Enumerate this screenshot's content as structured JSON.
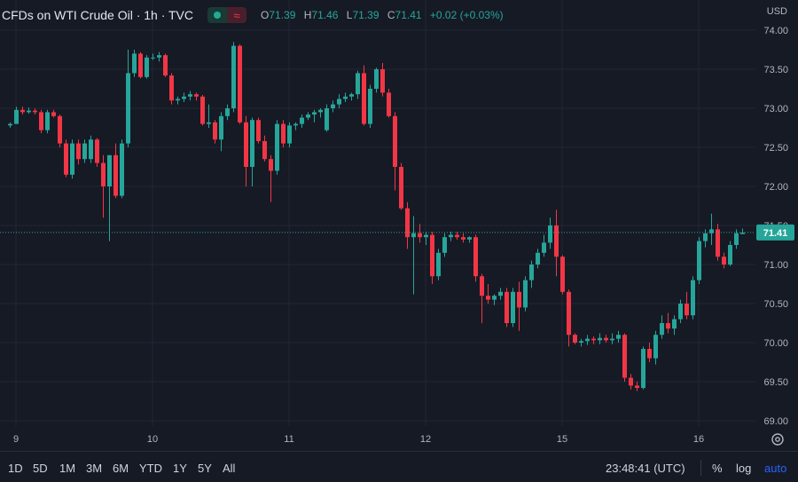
{
  "header": {
    "title": "CFDs on WTI Crude Oil · 1h · TVC",
    "ohlc": {
      "o_label": "O",
      "o_value": "71.39",
      "h_label": "H",
      "h_value": "71.46",
      "l_label": "L",
      "l_value": "71.39",
      "c_label": "C",
      "c_value": "71.41",
      "change": "+0.02 (+0.03%)"
    },
    "currency": "USD"
  },
  "price_tag": "71.41",
  "colors": {
    "up": "#26a69a",
    "down": "#f23645",
    "background": "#161a25",
    "grid": "#232734",
    "price_line": "#26a69a"
  },
  "chart_data": {
    "type": "candlestick",
    "title": "CFDs on WTI Crude Oil · 1h · TVC",
    "y_ticks": [
      "74.00",
      "73.50",
      "73.00",
      "72.50",
      "72.00",
      "71.50",
      "71.00",
      "70.50",
      "70.00",
      "69.50",
      "69.00"
    ],
    "ylim": [
      68.94,
      74.12
    ],
    "x_ticks": [
      {
        "label": "9",
        "index": 1
      },
      {
        "label": "10",
        "index": 23
      },
      {
        "label": "11",
        "index": 45
      },
      {
        "label": "12",
        "index": 67
      },
      {
        "label": "15",
        "index": 89
      },
      {
        "label": "16",
        "index": 111
      }
    ],
    "last_price": 71.41,
    "grid": true,
    "candles": [
      [
        72.78,
        72.82,
        72.75,
        72.8
      ],
      [
        72.8,
        73.02,
        72.8,
        72.98
      ],
      [
        72.98,
        73.02,
        72.92,
        72.95
      ],
      [
        72.95,
        73.01,
        72.93,
        72.97
      ],
      [
        72.97,
        73.0,
        72.92,
        72.95
      ],
      [
        72.95,
        72.98,
        72.68,
        72.72
      ],
      [
        72.72,
        72.98,
        72.68,
        72.95
      ],
      [
        72.95,
        72.98,
        72.88,
        72.9
      ],
      [
        72.9,
        72.92,
        72.5,
        72.55
      ],
      [
        72.55,
        72.6,
        72.12,
        72.15
      ],
      [
        72.15,
        72.6,
        72.1,
        72.55
      ],
      [
        72.55,
        72.6,
        72.28,
        72.35
      ],
      [
        72.35,
        72.6,
        72.3,
        72.55
      ],
      [
        72.35,
        72.65,
        72.3,
        72.6
      ],
      [
        72.6,
        72.62,
        72.25,
        72.3
      ],
      [
        72.3,
        72.4,
        71.6,
        72.0
      ],
      [
        72.0,
        72.4,
        71.3,
        72.4
      ],
      [
        72.4,
        72.55,
        71.85,
        71.88
      ],
      [
        71.88,
        72.6,
        71.85,
        72.55
      ],
      [
        72.55,
        73.75,
        72.5,
        73.45
      ],
      [
        73.45,
        73.75,
        73.4,
        73.7
      ],
      [
        73.7,
        73.72,
        73.38,
        73.4
      ],
      [
        73.4,
        73.68,
        73.38,
        73.65
      ],
      [
        73.65,
        73.7,
        73.62,
        73.65
      ],
      [
        73.65,
        73.72,
        73.6,
        73.68
      ],
      [
        73.68,
        73.7,
        73.4,
        73.42
      ],
      [
        73.42,
        73.45,
        73.05,
        73.1
      ],
      [
        73.1,
        73.15,
        73.05,
        73.12
      ],
      [
        73.12,
        73.2,
        73.08,
        73.15
      ],
      [
        73.15,
        73.22,
        73.1,
        73.18
      ],
      [
        73.18,
        73.2,
        73.1,
        73.15
      ],
      [
        73.15,
        73.17,
        72.78,
        72.8
      ],
      [
        72.8,
        73.05,
        72.75,
        72.82
      ],
      [
        72.82,
        72.85,
        72.55,
        72.6
      ],
      [
        72.6,
        72.95,
        72.45,
        72.9
      ],
      [
        72.9,
        73.05,
        72.85,
        73.0
      ],
      [
        73.0,
        73.85,
        72.95,
        73.8
      ],
      [
        73.8,
        73.82,
        72.8,
        72.82
      ],
      [
        72.82,
        72.9,
        72.0,
        72.25
      ],
      [
        72.25,
        72.88,
        72.0,
        72.85
      ],
      [
        72.85,
        72.88,
        72.55,
        72.58
      ],
      [
        72.58,
        72.65,
        72.32,
        72.35
      ],
      [
        72.35,
        72.4,
        71.8,
        72.2
      ],
      [
        72.2,
        72.85,
        72.15,
        72.8
      ],
      [
        72.8,
        72.85,
        72.5,
        72.55
      ],
      [
        72.55,
        72.82,
        72.5,
        72.78
      ],
      [
        72.78,
        72.82,
        72.72,
        72.8
      ],
      [
        72.8,
        72.92,
        72.75,
        72.88
      ],
      [
        72.88,
        72.95,
        72.85,
        72.92
      ],
      [
        72.92,
        72.98,
        72.82,
        72.95
      ],
      [
        72.95,
        73.0,
        72.88,
        72.98
      ],
      [
        72.72,
        73.05,
        72.7,
        73.0
      ],
      [
        73.0,
        73.1,
        72.95,
        73.05
      ],
      [
        73.05,
        73.18,
        73.0,
        73.12
      ],
      [
        73.12,
        73.2,
        73.08,
        73.15
      ],
      [
        73.15,
        73.2,
        73.1,
        73.18
      ],
      [
        73.18,
        73.48,
        73.12,
        73.45
      ],
      [
        73.45,
        73.55,
        72.78,
        72.8
      ],
      [
        72.8,
        73.3,
        72.75,
        73.25
      ],
      [
        73.25,
        73.52,
        73.2,
        73.5
      ],
      [
        73.5,
        73.58,
        73.15,
        73.2
      ],
      [
        73.2,
        73.25,
        72.88,
        72.9
      ],
      [
        72.9,
        72.95,
        71.95,
        72.25
      ],
      [
        72.25,
        72.3,
        71.7,
        71.72
      ],
      [
        71.72,
        71.8,
        71.2,
        71.35
      ],
      [
        71.35,
        71.62,
        70.62,
        71.4
      ],
      [
        71.4,
        71.52,
        71.28,
        71.35
      ],
      [
        71.35,
        71.42,
        71.25,
        71.38
      ],
      [
        71.38,
        71.42,
        70.75,
        70.85
      ],
      [
        70.85,
        71.2,
        70.8,
        71.15
      ],
      [
        71.15,
        71.4,
        71.1,
        71.35
      ],
      [
        71.35,
        71.42,
        71.3,
        71.38
      ],
      [
        71.38,
        71.42,
        71.32,
        71.35
      ],
      [
        71.35,
        71.4,
        71.28,
        71.32
      ],
      [
        71.32,
        71.36,
        71.28,
        71.35
      ],
      [
        71.35,
        71.38,
        70.78,
        70.85
      ],
      [
        70.85,
        70.88,
        70.25,
        70.6
      ],
      [
        70.6,
        70.75,
        70.5,
        70.55
      ],
      [
        70.55,
        70.62,
        70.48,
        70.6
      ],
      [
        70.6,
        70.7,
        70.55,
        70.65
      ],
      [
        70.65,
        70.7,
        70.2,
        70.25
      ],
      [
        70.25,
        70.7,
        70.2,
        70.65
      ],
      [
        70.65,
        70.78,
        70.15,
        70.45
      ],
      [
        70.45,
        70.85,
        70.4,
        70.8
      ],
      [
        70.8,
        71.05,
        70.7,
        71.0
      ],
      [
        71.0,
        71.2,
        70.95,
        71.15
      ],
      [
        71.15,
        71.38,
        71.1,
        71.28
      ],
      [
        71.28,
        71.6,
        71.2,
        71.5
      ],
      [
        71.5,
        71.7,
        70.85,
        71.1
      ],
      [
        71.1,
        71.12,
        70.62,
        70.65
      ],
      [
        70.65,
        70.68,
        69.95,
        70.1
      ],
      [
        70.1,
        70.12,
        69.98,
        70.0
      ],
      [
        70.0,
        70.05,
        69.95,
        70.02
      ],
      [
        70.02,
        70.1,
        69.97,
        70.05
      ],
      [
        70.05,
        70.08,
        69.98,
        70.03
      ],
      [
        70.03,
        70.12,
        69.98,
        70.06
      ],
      [
        70.06,
        70.1,
        70.0,
        70.03
      ],
      [
        70.03,
        70.12,
        69.98,
        70.05
      ],
      [
        70.05,
        70.15,
        70.0,
        70.1
      ],
      [
        70.1,
        70.12,
        69.5,
        69.55
      ],
      [
        69.55,
        69.6,
        69.4,
        69.45
      ],
      [
        69.45,
        69.5,
        69.38,
        69.42
      ],
      [
        69.42,
        69.95,
        69.4,
        69.92
      ],
      [
        69.92,
        70.0,
        69.75,
        69.8
      ],
      [
        69.8,
        70.15,
        69.72,
        70.1
      ],
      [
        70.1,
        70.35,
        70.05,
        70.25
      ],
      [
        70.25,
        70.38,
        70.12,
        70.18
      ],
      [
        70.18,
        70.35,
        70.1,
        70.3
      ],
      [
        70.3,
        70.55,
        70.25,
        70.5
      ],
      [
        70.5,
        70.65,
        70.3,
        70.35
      ],
      [
        70.35,
        70.85,
        70.3,
        70.8
      ],
      [
        70.8,
        71.35,
        70.75,
        71.3
      ],
      [
        71.3,
        71.45,
        71.22,
        71.4
      ],
      [
        71.4,
        71.65,
        71.25,
        71.45
      ],
      [
        71.45,
        71.52,
        71.05,
        71.1
      ],
      [
        71.1,
        71.15,
        70.95,
        71.0
      ],
      [
        71.0,
        71.3,
        70.98,
        71.25
      ],
      [
        71.25,
        71.45,
        71.2,
        71.4
      ],
      [
        71.39,
        71.46,
        71.39,
        71.41
      ]
    ]
  },
  "bottom_bar": {
    "ranges": [
      "1D",
      "5D",
      "1M",
      "3M",
      "6M",
      "YTD",
      "1Y",
      "5Y",
      "All"
    ],
    "clock": "23:48:41 (UTC)",
    "percent_label": "%",
    "log_label": "log",
    "auto_label": "auto"
  }
}
